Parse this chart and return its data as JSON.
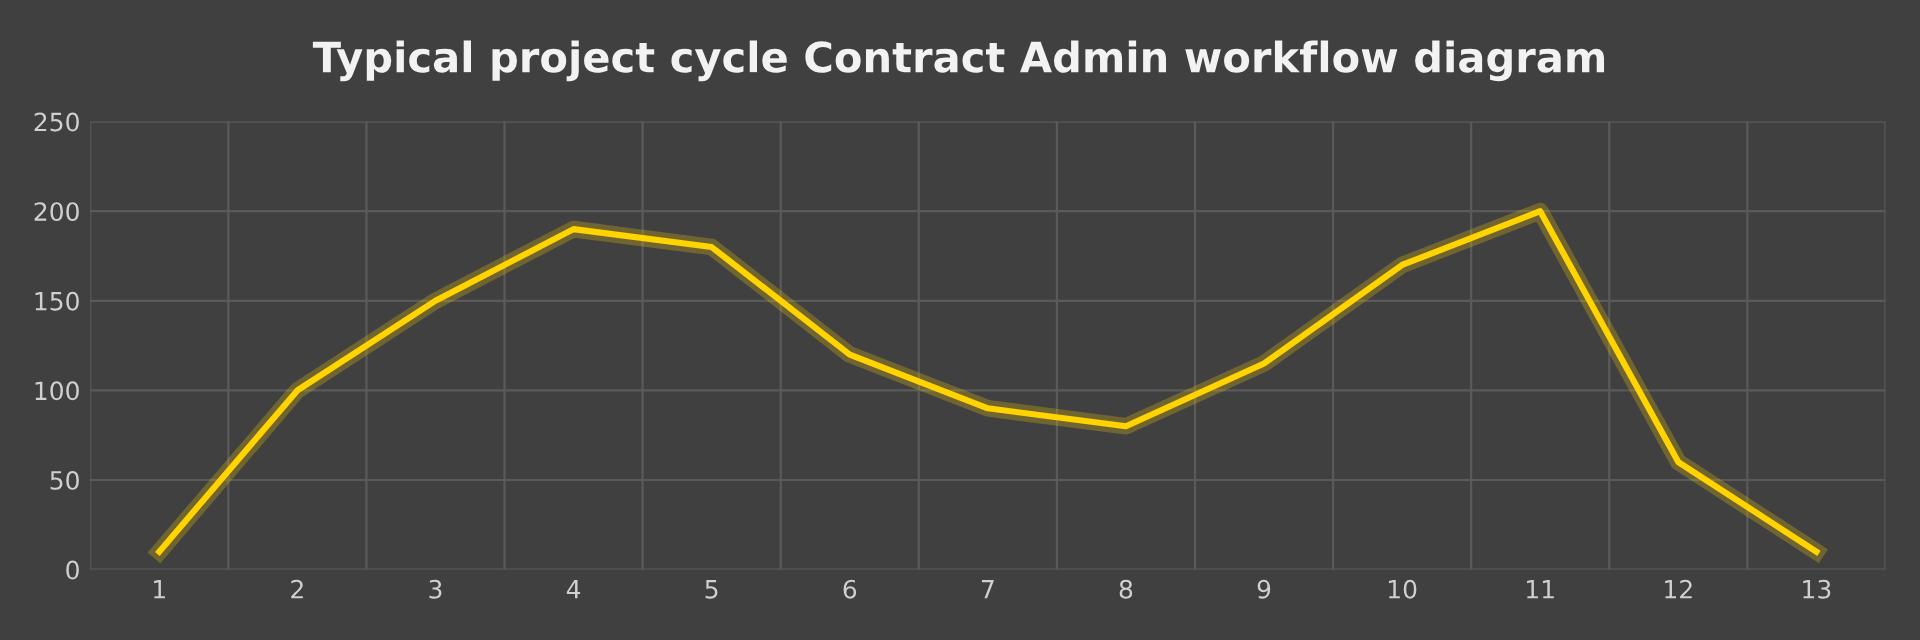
{
  "chart_data": {
    "type": "line",
    "title": "Typical project cycle Contract Admin workflow diagram",
    "categories": [
      "1",
      "2",
      "3",
      "4",
      "5",
      "6",
      "7",
      "8",
      "9",
      "10",
      "11",
      "12",
      "13"
    ],
    "series": [
      {
        "color": "#ffd400",
        "values": [
          10,
          100,
          150,
          190,
          180,
          120,
          90,
          80,
          115,
          170,
          200,
          60,
          10
        ]
      }
    ],
    "ylim": [
      0,
      250
    ],
    "yticks": [
      0,
      50,
      100,
      150,
      200,
      250
    ],
    "grid": true,
    "marker": "none",
    "line_style": "solid"
  }
}
